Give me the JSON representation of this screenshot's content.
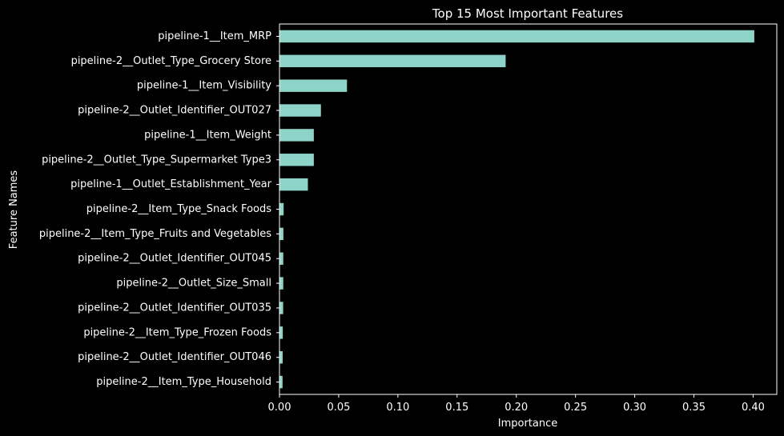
{
  "chart_data": {
    "type": "bar",
    "orientation": "horizontal",
    "title": "Top 15 Most Important Features",
    "xlabel": "Importance",
    "ylabel": "Feature Names",
    "xlim": [
      0,
      0.42
    ],
    "xticks": [
      "0.00",
      "0.05",
      "0.10",
      "0.15",
      "0.20",
      "0.25",
      "0.30",
      "0.35",
      "0.40"
    ],
    "grid": false,
    "legend": "none",
    "bar_color": "#8dd3c7",
    "background_color": "#000000",
    "categories": [
      "pipeline-1__Item_MRP",
      "pipeline-2__Outlet_Type_Grocery Store",
      "pipeline-1__Item_Visibility",
      "pipeline-2__Outlet_Identifier_OUT027",
      "pipeline-1__Item_Weight",
      "pipeline-2__Outlet_Type_Supermarket Type3",
      "pipeline-1__Outlet_Establishment_Year",
      "pipeline-2__Item_Type_Snack Foods",
      "pipeline-2__Item_Type_Fruits and Vegetables",
      "pipeline-2__Outlet_Identifier_OUT045",
      "pipeline-2__Outlet_Size_Small",
      "pipeline-2__Outlet_Identifier_OUT035",
      "pipeline-2__Item_Type_Frozen Foods",
      "pipeline-2__Outlet_Identifier_OUT046",
      "pipeline-2__Item_Type_Household"
    ],
    "values": [
      0.401,
      0.191,
      0.057,
      0.035,
      0.029,
      0.029,
      0.024,
      0.0035,
      0.0033,
      0.0032,
      0.0032,
      0.0031,
      0.0028,
      0.0027,
      0.0026
    ]
  }
}
